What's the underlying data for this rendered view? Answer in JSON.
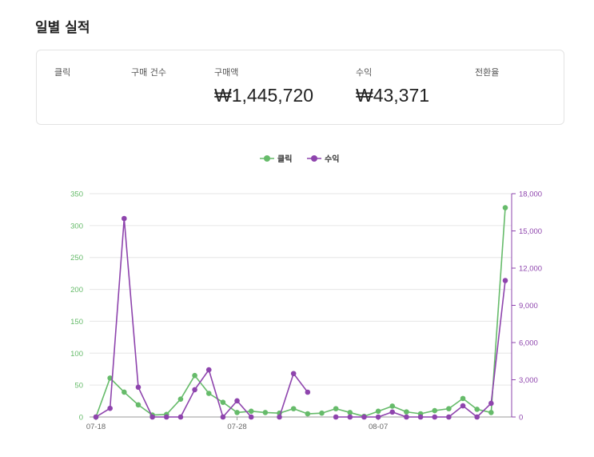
{
  "page": {
    "title": "일별 실적"
  },
  "summary": {
    "metrics": [
      {
        "label": "클릭",
        "value": ""
      },
      {
        "label": "구매 건수",
        "value": ""
      },
      {
        "label": "구매액",
        "value": "₩1,445,720"
      },
      {
        "label": "수익",
        "value": "₩43,371"
      },
      {
        "label": "전환율",
        "value": ""
      }
    ]
  },
  "chart_data": {
    "type": "line",
    "title": "",
    "x": [
      "07-18",
      "07-19",
      "07-20",
      "07-21",
      "07-22",
      "07-23",
      "07-24",
      "07-25",
      "07-26",
      "07-27",
      "07-28",
      "07-29",
      "07-30",
      "07-31",
      "08-01",
      "08-02",
      "08-03",
      "08-04",
      "08-05",
      "08-06",
      "08-07",
      "08-08",
      "08-09",
      "08-10",
      "08-11",
      "08-12",
      "08-13",
      "08-14",
      "08-15",
      "08-16"
    ],
    "x_tick_labels": [
      "07-18",
      "07-28",
      "08-07"
    ],
    "series": [
      {
        "name": "클릭",
        "axis": "left",
        "color": "#66bb6a",
        "values": [
          0,
          61,
          39,
          19,
          3,
          4,
          28,
          65,
          37,
          23,
          7,
          9,
          7,
          6,
          13,
          5,
          6,
          13,
          7,
          1,
          9,
          17,
          8,
          5,
          10,
          13,
          29,
          12,
          7,
          328
        ]
      },
      {
        "name": "수익",
        "axis": "right",
        "color": "#8e44ad",
        "values": [
          0,
          700,
          16000,
          2400,
          0,
          0,
          0,
          2200,
          3800,
          0,
          1300,
          0,
          null,
          0,
          3500,
          2000,
          null,
          0,
          0,
          0,
          0,
          400,
          0,
          0,
          0,
          0,
          900,
          0,
          1100,
          11000
        ]
      }
    ],
    "y_left": {
      "ylim": [
        0,
        350
      ],
      "ticks": [
        "0",
        "50",
        "100",
        "150",
        "200",
        "250",
        "300",
        "350"
      ],
      "color": "#66bb6a"
    },
    "y_right": {
      "ylim": [
        0,
        18000
      ],
      "ticks": [
        "0",
        "3,000",
        "6,000",
        "9,000",
        "12,000",
        "15,000",
        "18,000"
      ],
      "color": "#8e44ad"
    },
    "legend": {
      "placement": "top-center"
    },
    "grid": true
  }
}
